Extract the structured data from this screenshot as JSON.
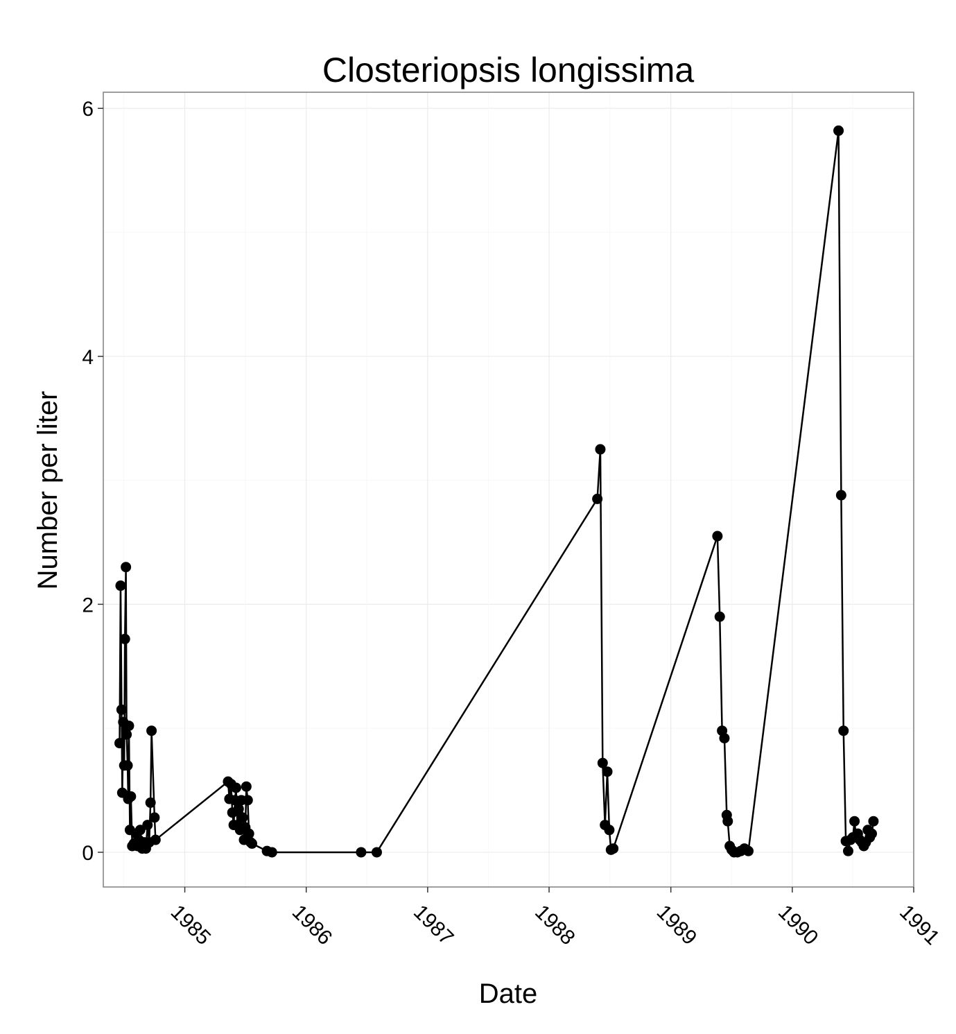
{
  "chart_data": {
    "type": "line",
    "title": "Closteriopsis longissima",
    "xlabel": "Date",
    "ylabel": "Number per liter",
    "x_ticks": [
      "1985",
      "1986",
      "1987",
      "1988",
      "1989",
      "1990",
      "1991"
    ],
    "y_ticks": [
      "0",
      "2",
      "4",
      "6"
    ],
    "xlim": [
      "1984-05-01",
      "1991-01-01"
    ],
    "ylim": [
      -0.28,
      6.13
    ],
    "grid": true,
    "series": [
      {
        "points": [
          [
            "1984-06-19",
            0.88
          ],
          [
            "1984-06-22",
            2.15
          ],
          [
            "1984-06-25",
            1.15
          ],
          [
            "1984-06-27",
            0.48
          ],
          [
            "1984-06-30",
            1.05
          ],
          [
            "1984-07-03",
            0.7
          ],
          [
            "1984-07-05",
            1.72
          ],
          [
            "1984-07-08",
            2.3
          ],
          [
            "1984-07-10",
            0.95
          ],
          [
            "1984-07-13",
            0.7
          ],
          [
            "1984-07-15",
            0.43
          ],
          [
            "1984-07-17",
            1.02
          ],
          [
            "1984-07-20",
            0.18
          ],
          [
            "1984-07-23",
            0.45
          ],
          [
            "1984-07-27",
            0.05
          ],
          [
            "1984-08-01",
            0.07
          ],
          [
            "1984-08-07",
            0.15
          ],
          [
            "1984-08-12",
            0.05
          ],
          [
            "1984-08-16",
            0.1
          ],
          [
            "1984-08-20",
            0.18
          ],
          [
            "1984-08-26",
            0.03
          ],
          [
            "1984-09-01",
            0.08
          ],
          [
            "1984-09-06",
            0.03
          ],
          [
            "1984-09-11",
            0.22
          ],
          [
            "1984-09-16",
            0.08
          ],
          [
            "1984-09-20",
            0.4
          ],
          [
            "1984-09-23",
            0.98
          ],
          [
            "1984-10-02",
            0.28
          ],
          [
            "1984-10-05",
            0.1
          ],
          [
            "1985-05-11",
            0.57
          ],
          [
            "1985-05-15",
            0.43
          ],
          [
            "1985-05-20",
            0.55
          ],
          [
            "1985-05-24",
            0.32
          ],
          [
            "1985-05-28",
            0.22
          ],
          [
            "1985-06-01",
            0.42
          ],
          [
            "1985-06-04",
            0.52
          ],
          [
            "1985-06-08",
            0.22
          ],
          [
            "1985-06-12",
            0.35
          ],
          [
            "1985-06-16",
            0.18
          ],
          [
            "1985-06-20",
            0.42
          ],
          [
            "1985-06-24",
            0.28
          ],
          [
            "1985-06-28",
            0.1
          ],
          [
            "1985-07-02",
            0.2
          ],
          [
            "1985-07-05",
            0.53
          ],
          [
            "1985-07-09",
            0.42
          ],
          [
            "1985-07-13",
            0.15
          ],
          [
            "1985-07-18",
            0.08
          ],
          [
            "1985-07-22",
            0.07
          ],
          [
            "1985-09-05",
            0.01
          ],
          [
            "1985-09-20",
            0.0
          ],
          [
            "1986-06-15",
            0.0
          ],
          [
            "1986-08-01",
            0.0
          ],
          [
            "1988-05-25",
            2.85
          ],
          [
            "1988-06-03",
            3.25
          ],
          [
            "1988-06-10",
            0.72
          ],
          [
            "1988-06-17",
            0.22
          ],
          [
            "1988-06-24",
            0.65
          ],
          [
            "1988-06-30",
            0.18
          ],
          [
            "1988-07-05",
            0.02
          ],
          [
            "1988-07-12",
            0.03
          ],
          [
            "1989-05-21",
            2.55
          ],
          [
            "1989-05-28",
            1.9
          ],
          [
            "1989-06-04",
            0.98
          ],
          [
            "1989-06-11",
            0.92
          ],
          [
            "1989-06-18",
            0.3
          ],
          [
            "1989-06-21",
            0.25
          ],
          [
            "1989-06-27",
            0.05
          ],
          [
            "1989-07-03",
            0.02
          ],
          [
            "1989-07-10",
            0.0
          ],
          [
            "1989-07-20",
            0.0
          ],
          [
            "1989-07-30",
            0.01
          ],
          [
            "1989-08-10",
            0.03
          ],
          [
            "1989-08-22",
            0.01
          ],
          [
            "1990-05-20",
            5.82
          ],
          [
            "1990-05-28",
            2.88
          ],
          [
            "1990-06-04",
            0.98
          ],
          [
            "1990-06-11",
            0.09
          ],
          [
            "1990-06-18",
            0.01
          ],
          [
            "1990-06-25",
            0.1
          ],
          [
            "1990-07-02",
            0.12
          ],
          [
            "1990-07-07",
            0.25
          ],
          [
            "1990-07-12",
            0.12
          ],
          [
            "1990-07-17",
            0.15
          ],
          [
            "1990-07-23",
            0.1
          ],
          [
            "1990-07-29",
            0.08
          ],
          [
            "1990-08-04",
            0.05
          ],
          [
            "1990-08-10",
            0.08
          ],
          [
            "1990-08-16",
            0.18
          ],
          [
            "1990-08-22",
            0.12
          ],
          [
            "1990-08-28",
            0.15
          ],
          [
            "1990-09-02",
            0.25
          ]
        ]
      }
    ]
  }
}
